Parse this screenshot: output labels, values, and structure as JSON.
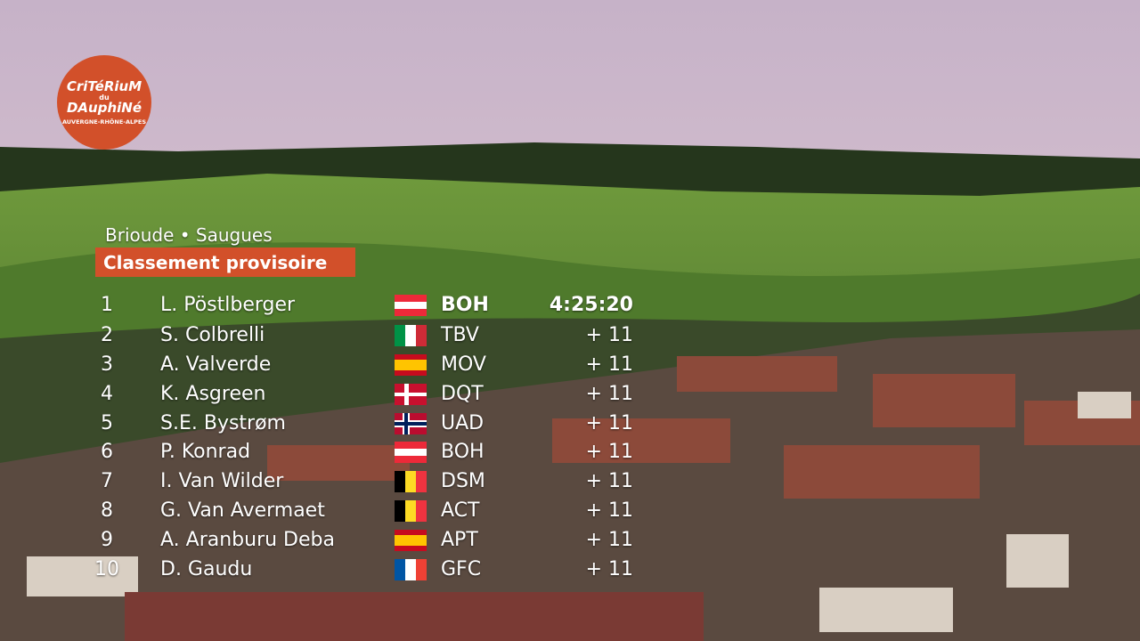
{
  "logo": {
    "line1": "CriTéRiuM",
    "line2": "du",
    "line3": "DAuphiNé",
    "line4": "AUVERGNE-RHÔNE-ALPES"
  },
  "stage": "Brioude • Saugues",
  "heading": "Classement provisoire",
  "table": {
    "rows": [
      [
        1,
        "L. Pöstlberger",
        "BOH",
        "4:25:20"
      ],
      [
        2,
        "S. Colbrelli",
        "TBV",
        "+ 11"
      ],
      [
        3,
        "A. Valverde",
        "MOV",
        "+ 11"
      ],
      [
        4,
        "K. Asgreen",
        "DQT",
        "+ 11"
      ],
      [
        5,
        "S.E. Bystrøm",
        "UAD",
        "+ 11"
      ],
      [
        6,
        "P. Konrad",
        "BOH",
        "+ 11"
      ],
      [
        7,
        "I. Van Wilder",
        "DSM",
        "+ 11"
      ],
      [
        8,
        "G. Van Avermaet",
        "ACT",
        "+ 11"
      ],
      [
        9,
        "A. Aranburu Deba",
        "APT",
        "+ 11"
      ],
      [
        10,
        "D. Gaudu",
        "GFC",
        "+ 11"
      ]
    ]
  }
}
